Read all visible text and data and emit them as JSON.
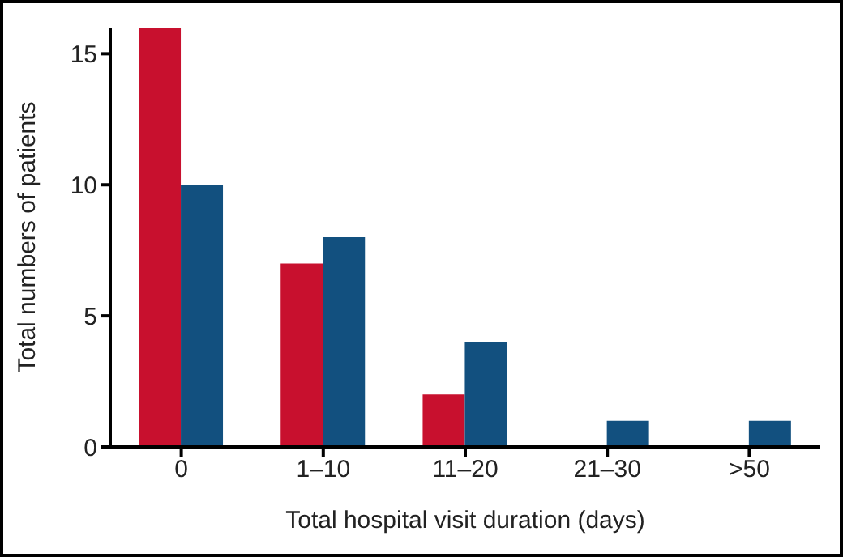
{
  "chart_data": {
    "type": "bar",
    "xlabel": "Total hospital visit duration (days)",
    "ylabel": "Total numbers of patients",
    "categories": [
      "0",
      "1–10",
      "11–20",
      "21–30",
      ">50"
    ],
    "series": [
      {
        "color": "#c8102e",
        "values": [
          16,
          7,
          2,
          0,
          0
        ]
      },
      {
        "color": "#12507f",
        "values": [
          10,
          8,
          4,
          1,
          1
        ]
      }
    ],
    "ylim": [
      0,
      16
    ],
    "yticks": [
      0,
      5,
      10,
      15
    ]
  }
}
